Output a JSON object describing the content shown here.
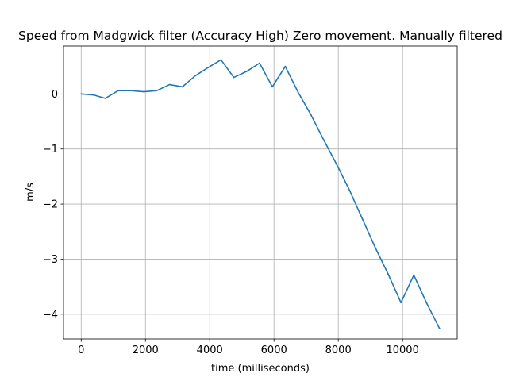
{
  "chart_data": {
    "type": "line",
    "title": "Speed from Madgwick filter (Accuracy High) Zero movement. Manually filtered",
    "xlabel": "time (milliseconds)",
    "ylabel": "m/s",
    "xlim": [
      -550,
      11700
    ],
    "ylim": [
      -4.45,
      0.87
    ],
    "xticks": [
      0,
      2000,
      4000,
      6000,
      8000,
      10000
    ],
    "xtick_labels": [
      "0",
      "2000",
      "4000",
      "6000",
      "8000",
      "10000"
    ],
    "yticks": [
      0,
      -1,
      -2,
      -3,
      -4
    ],
    "ytick_labels": [
      "0",
      "−1",
      "−2",
      "−3",
      "−4"
    ],
    "grid": true,
    "series": [
      {
        "color": "#1f77b4",
        "x": [
          0,
          400,
          750,
          1150,
          1550,
          1950,
          2350,
          2750,
          3150,
          3550,
          3950,
          4350,
          4750,
          5150,
          5550,
          5950,
          6350,
          6750,
          7150,
          7550,
          7950,
          8350,
          8750,
          9150,
          9550,
          9950,
          10350,
          10750,
          11150
        ],
        "y": [
          0.0,
          -0.02,
          -0.08,
          0.06,
          0.06,
          0.04,
          0.06,
          0.17,
          0.13,
          0.33,
          0.48,
          0.62,
          0.3,
          0.41,
          0.56,
          0.13,
          0.5,
          0.03,
          -0.38,
          -0.84,
          -1.28,
          -1.75,
          -2.27,
          -2.79,
          -3.27,
          -3.79,
          -3.29,
          -3.8,
          -4.26
        ]
      }
    ]
  }
}
